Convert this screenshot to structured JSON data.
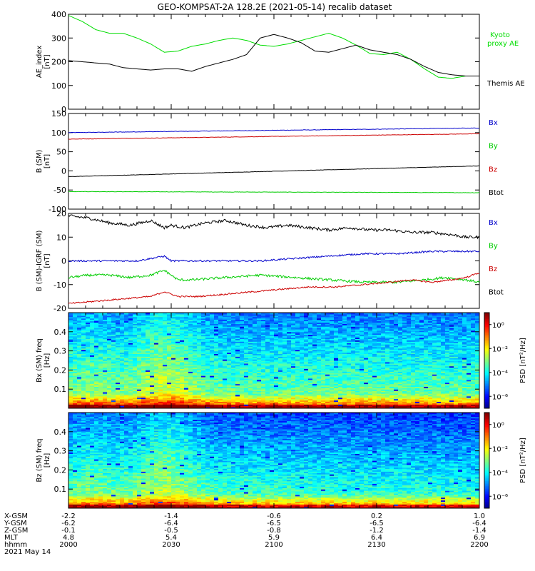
{
  "title": "GEO-KOMPSAT-2A 128.2E (2021-05-14) recalib dataset",
  "chart_data": [
    {
      "type": "line",
      "ylabel": "AE_index [nT]",
      "ylim": [
        0,
        400
      ],
      "yticks": [
        "0",
        "100",
        "200",
        "300",
        "400"
      ],
      "x_range": [
        "2000",
        "2200"
      ],
      "series": [
        {
          "name": "Kyoto proxy AE",
          "legend": "Kyoto\nproxy AE",
          "color": "#00dd00",
          "x": [
            0,
            4,
            8,
            12,
            16,
            20,
            24,
            28,
            32,
            36,
            40,
            44,
            48,
            52,
            56,
            60,
            64,
            68,
            72,
            76,
            80,
            84,
            88,
            92,
            96,
            100,
            104,
            108,
            112,
            116,
            120
          ],
          "y": [
            395,
            370,
            335,
            320,
            320,
            300,
            275,
            240,
            245,
            265,
            275,
            290,
            300,
            290,
            270,
            265,
            275,
            290,
            305,
            320,
            300,
            270,
            235,
            230,
            240,
            210,
            170,
            135,
            130,
            140,
            140
          ]
        },
        {
          "name": "Themis AE",
          "legend": "Themis AE",
          "color": "#000000",
          "x": [
            0,
            4,
            8,
            12,
            16,
            20,
            24,
            28,
            32,
            36,
            40,
            44,
            48,
            52,
            56,
            60,
            64,
            68,
            72,
            76,
            80,
            84,
            88,
            92,
            96,
            100,
            104,
            108,
            112,
            116,
            120
          ],
          "y": [
            205,
            200,
            195,
            190,
            175,
            170,
            165,
            170,
            170,
            160,
            180,
            195,
            210,
            230,
            300,
            315,
            300,
            280,
            245,
            240,
            255,
            270,
            250,
            240,
            230,
            210,
            180,
            155,
            145,
            140,
            140
          ]
        }
      ]
    },
    {
      "type": "line",
      "ylabel": "B (SM) [nT]",
      "ylim": [
        -100,
        150
      ],
      "yticks": [
        "-100",
        "-50",
        "0",
        "50",
        "100",
        "150"
      ],
      "series": [
        {
          "name": "Bx",
          "color": "#0000cc",
          "start": 100,
          "end": 112,
          "noise": 1.2
        },
        {
          "name": "By",
          "color": "#00cc00",
          "start": -54,
          "end": -57,
          "noise": 1.0
        },
        {
          "name": "Bz",
          "color": "#cc0000",
          "start": 83,
          "end": 97,
          "noise": 1.0
        },
        {
          "name": "Btot",
          "color": "#000000",
          "start": -15,
          "end": 13,
          "noise": 0.8
        }
      ],
      "legend": [
        "Bx",
        "By",
        "Bz",
        "Btot"
      ]
    },
    {
      "type": "line",
      "ylabel": "B (SM)-IGRF (SM) [nT]",
      "ylim": [
        -20,
        20
      ],
      "yticks": [
        "-20",
        "-10",
        "0",
        "10",
        "20"
      ],
      "series": [
        {
          "name": "Bx",
          "color": "#000000",
          "x": [
            0,
            6,
            12,
            18,
            24,
            28,
            30,
            34,
            40,
            46,
            52,
            58,
            64,
            70,
            76,
            82,
            88,
            94,
            100,
            106,
            112,
            116,
            120
          ],
          "y": [
            19,
            18,
            16,
            15,
            17,
            14,
            15,
            14,
            16,
            17,
            15,
            14,
            15,
            14,
            13,
            14,
            13,
            13,
            12,
            12,
            11,
            10,
            10
          ],
          "noise": 1.2
        },
        {
          "name": "By",
          "color": "#0000cc",
          "x": [
            0,
            10,
            20,
            28,
            30,
            36,
            46,
            56,
            66,
            76,
            86,
            96,
            106,
            114,
            120
          ],
          "y": [
            0,
            0,
            0,
            2,
            0,
            0,
            0,
            0,
            1,
            2,
            3,
            3,
            4,
            4,
            4
          ],
          "noise": 0.7
        },
        {
          "name": "Bz",
          "color": "#00cc00",
          "x": [
            0,
            6,
            12,
            18,
            24,
            28,
            32,
            36,
            46,
            56,
            66,
            76,
            86,
            96,
            104,
            110,
            116,
            120
          ],
          "y": [
            -7,
            -6,
            -6,
            -7,
            -6,
            -4,
            -8,
            -8,
            -7,
            -6,
            -7,
            -8,
            -9,
            -9,
            -8,
            -7,
            -8,
            -9
          ],
          "noise": 1.0
        },
        {
          "name": "Btot",
          "color": "#cc0000",
          "x": [
            0,
            8,
            16,
            24,
            28,
            32,
            38,
            46,
            54,
            62,
            70,
            78,
            86,
            94,
            100,
            106,
            112,
            116,
            120
          ],
          "y": [
            -18,
            -17,
            -16,
            -15,
            -13,
            -15,
            -15,
            -14,
            -13,
            -12,
            -11,
            -11,
            -10,
            -9,
            -8,
            -9,
            -8,
            -7,
            -5
          ],
          "noise": 0.6
        }
      ],
      "legend": [
        "Bx",
        "By",
        "Bz",
        "Btot"
      ]
    },
    {
      "type": "heatmap",
      "ylabel": "Bx (SM) freq [Hz]",
      "ylim": [
        0,
        0.5
      ],
      "yticks": [
        "0.1",
        "0.2",
        "0.3",
        "0.4"
      ],
      "colorbar_label": "PSD [nT²/Hz]",
      "colorbar_ticks": [
        "10⁰",
        "10⁻²",
        "10⁻⁴",
        "10⁻⁶"
      ],
      "colorbar_range": [
        -7,
        1
      ]
    },
    {
      "type": "heatmap",
      "ylabel": "Bz (SM) freq [Hz]",
      "ylim": [
        0,
        0.5
      ],
      "yticks": [
        "0.1",
        "0.2",
        "0.3",
        "0.4"
      ],
      "colorbar_label": "PSD [nT²/Hz]",
      "colorbar_ticks": [
        "10⁰",
        "10⁻²",
        "10⁻⁴",
        "10⁻⁶"
      ],
      "colorbar_range": [
        -7,
        1
      ]
    }
  ],
  "ephemeris": {
    "labels": [
      "X-GSM",
      "Y-GSM",
      "Z-GSM",
      "MLT",
      "hhmm",
      "2021 May 14"
    ],
    "columns": [
      [
        "-2.2",
        "-6.2",
        "-0.1",
        "4.8",
        "2000"
      ],
      [
        "-1.4",
        "-6.4",
        "-0.5",
        "5.4",
        "2030"
      ],
      [
        "-0.6",
        "-6.5",
        "-0.8",
        "5.9",
        "2100"
      ],
      [
        "0.2",
        "-6.5",
        "-1.2",
        "6.4",
        "2130"
      ],
      [
        "1.0",
        "-6.4",
        "-1.4",
        "6.9",
        "2200"
      ]
    ]
  }
}
